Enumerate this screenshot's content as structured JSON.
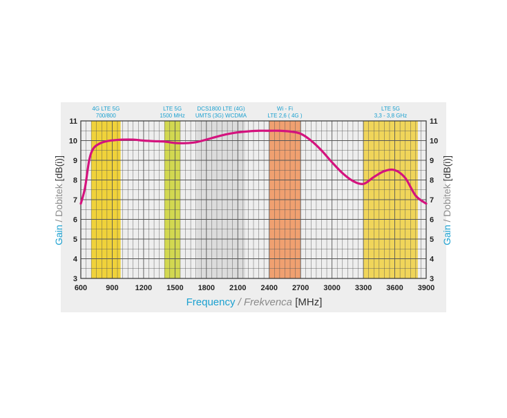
{
  "chart_data": {
    "type": "line",
    "xlabel": {
      "main": "Frequency",
      "sep": " / ",
      "alt": "Frekvenca",
      "unit": " [MHz]"
    },
    "ylabel": {
      "main": "Gain",
      "sep": " / ",
      "alt": "Dobitek",
      "unit": " [dB(i)]"
    },
    "xlim": [
      600,
      3900
    ],
    "ylim": [
      3,
      11
    ],
    "x_ticks": [
      600,
      900,
      1200,
      1500,
      1800,
      2100,
      2400,
      2700,
      3000,
      3300,
      3600,
      3900
    ],
    "y_ticks": [
      3,
      4,
      5,
      6,
      7,
      8,
      9,
      10,
      11
    ],
    "grid": true,
    "bands": [
      {
        "from": 700,
        "to": 980,
        "color": "#f0d23a",
        "label1": "4G LTE 5G",
        "label2": "700/800"
      },
      {
        "from": 1400,
        "to": 1550,
        "color": "#d2d850",
        "label1": "LTE 5G",
        "label2": "1500 MHz"
      },
      {
        "from": 1710,
        "to": 2170,
        "color": "#dcdcdc",
        "label1": "DCS1800 LTE (4G)",
        "label2": "UMTS (3G) WCDMA"
      },
      {
        "from": 2400,
        "to": 2700,
        "color": "#f0a070",
        "label1": "Wi - Fi",
        "label2": "LTE 2,6 ( 4G )"
      },
      {
        "from": 3300,
        "to": 3820,
        "color": "#f0d55a",
        "label1": "LTE 5G",
        "label2": "3,3 - 3,8 GHz"
      }
    ],
    "series": [
      {
        "color": "#d4137e",
        "x": [
          600,
          640,
          680,
          720,
          780,
          850,
          920,
          1000,
          1100,
          1200,
          1300,
          1400,
          1500,
          1600,
          1700,
          1800,
          1900,
          2000,
          2100,
          2200,
          2300,
          2400,
          2500,
          2600,
          2700,
          2800,
          2900,
          3000,
          3100,
          3200,
          3300,
          3400,
          3500,
          3600,
          3700,
          3800,
          3900
        ],
        "y": [
          6.8,
          7.6,
          9.0,
          9.6,
          9.85,
          9.97,
          10.02,
          10.05,
          10.05,
          10.0,
          9.97,
          9.95,
          9.88,
          9.87,
          9.92,
          10.05,
          10.2,
          10.33,
          10.42,
          10.47,
          10.5,
          10.5,
          10.5,
          10.46,
          10.35,
          10.0,
          9.5,
          8.9,
          8.35,
          7.95,
          7.8,
          8.15,
          8.45,
          8.5,
          8.1,
          7.2,
          6.8
        ]
      }
    ]
  },
  "colors": {
    "accent_blue": "#1aa0d0",
    "gray_text": "#8a8a8a",
    "dark_text": "#333333",
    "grid": "#555555",
    "curve": "#d4137e",
    "panel": "#eeeeee"
  }
}
